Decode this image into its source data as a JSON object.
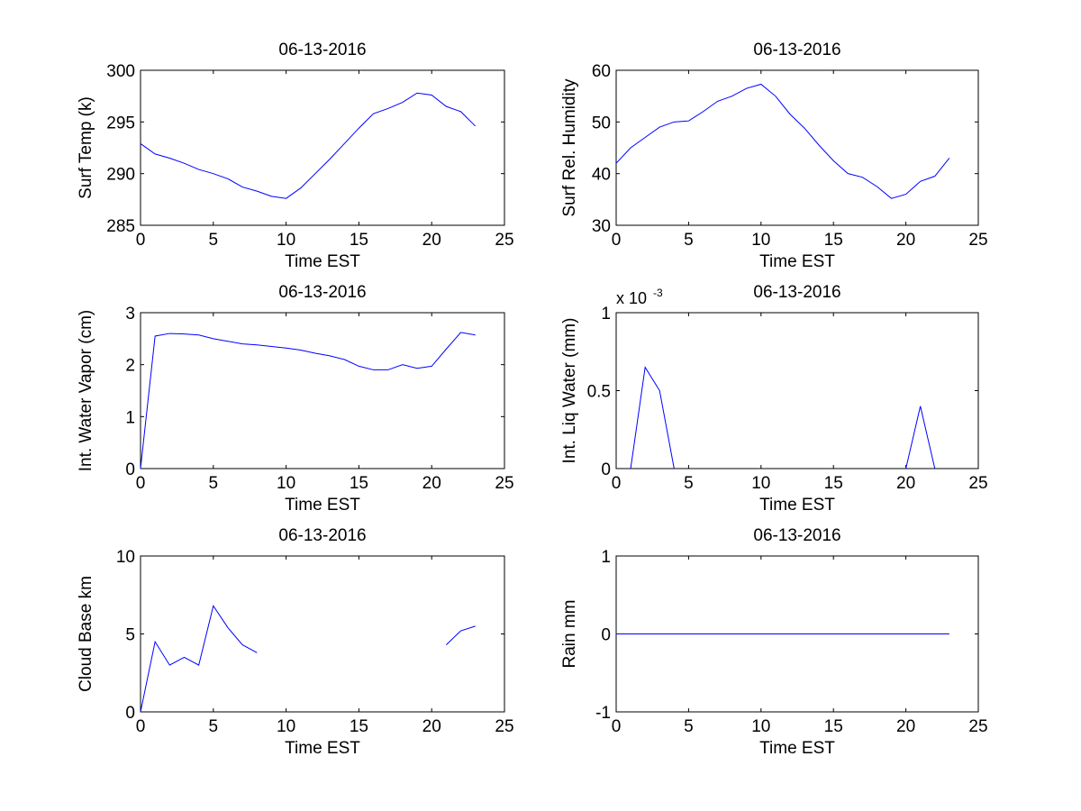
{
  "figure": {
    "background": "#ffffff",
    "line_color": "#0000ff"
  },
  "chart_data": [
    {
      "type": "line",
      "title": "06-13-2016",
      "xlabel": "Time EST",
      "ylabel": "Surf Temp (k)",
      "xlim": [
        0,
        25
      ],
      "ylim": [
        285,
        300
      ],
      "xticks": [
        0,
        5,
        10,
        15,
        20,
        25
      ],
      "yticks": [
        285,
        290,
        295,
        300
      ],
      "xtick_labels": [
        "0",
        "5",
        "10",
        "15",
        "20",
        "25"
      ],
      "ytick_labels": [
        "285",
        "290",
        "295",
        "300"
      ],
      "series": [
        {
          "name": "Surf Temp",
          "x": [
            0,
            1,
            2,
            3,
            4,
            5,
            6,
            7,
            8,
            9,
            10,
            11,
            12,
            13,
            14,
            15,
            16,
            17,
            18,
            19,
            20,
            21,
            22,
            23
          ],
          "values": [
            292.9,
            291.9,
            291.5,
            291.0,
            290.4,
            290.0,
            289.5,
            288.7,
            288.3,
            287.8,
            287.6,
            288.6,
            290.0,
            291.4,
            292.9,
            294.4,
            295.8,
            296.3,
            296.9,
            297.8,
            297.6,
            296.5,
            296.0,
            294.6
          ]
        }
      ]
    },
    {
      "type": "line",
      "title": "06-13-2016",
      "xlabel": "Time EST",
      "ylabel": "Surf Rel. Humidity",
      "xlim": [
        0,
        25
      ],
      "ylim": [
        30,
        60
      ],
      "xticks": [
        0,
        5,
        10,
        15,
        20,
        25
      ],
      "yticks": [
        30,
        40,
        50,
        60
      ],
      "xtick_labels": [
        "0",
        "5",
        "10",
        "15",
        "20",
        "25"
      ],
      "ytick_labels": [
        "30",
        "40",
        "50",
        "60"
      ],
      "series": [
        {
          "name": "Surf Rel. Humidity",
          "x": [
            0,
            1,
            2,
            3,
            4,
            5,
            6,
            7,
            8,
            9,
            10,
            11,
            12,
            13,
            14,
            15,
            16,
            17,
            18,
            19,
            20,
            21,
            22,
            23
          ],
          "values": [
            42.0,
            45.0,
            47.0,
            49.0,
            50.0,
            50.2,
            52.0,
            54.0,
            55.0,
            56.5,
            57.3,
            55.0,
            51.5,
            48.8,
            45.5,
            42.5,
            40.0,
            39.3,
            37.5,
            35.2,
            36.0,
            38.5,
            39.5,
            43.0
          ]
        }
      ]
    },
    {
      "type": "line",
      "title": "06-13-2016",
      "xlabel": "Time EST",
      "ylabel": "Int. Water Vapor (cm)",
      "xlim": [
        0,
        25
      ],
      "ylim": [
        0,
        3
      ],
      "xticks": [
        0,
        5,
        10,
        15,
        20,
        25
      ],
      "yticks": [
        0,
        1,
        2,
        3
      ],
      "xtick_labels": [
        "0",
        "5",
        "10",
        "15",
        "20",
        "25"
      ],
      "ytick_labels": [
        "0",
        "1",
        "2",
        "3"
      ],
      "series": [
        {
          "name": "Int. Water Vapor",
          "x": [
            0,
            1,
            2,
            3,
            4,
            5,
            6,
            7,
            8,
            9,
            10,
            11,
            12,
            13,
            14,
            15,
            16,
            17,
            18,
            19,
            20,
            21,
            22,
            23
          ],
          "values": [
            0.0,
            2.55,
            2.6,
            2.59,
            2.57,
            2.5,
            2.45,
            2.4,
            2.38,
            2.35,
            2.32,
            2.28,
            2.22,
            2.17,
            2.1,
            1.97,
            1.9,
            1.9,
            2.0,
            1.93,
            1.97,
            2.3,
            2.62,
            2.57
          ]
        }
      ]
    },
    {
      "type": "line",
      "title": "06-13-2016",
      "xlabel": "Time EST",
      "ylabel": "Int. Liq Water (mm)",
      "exponent_base": "x 10",
      "exponent_power": "-3",
      "xlim": [
        0,
        25
      ],
      "ylim": [
        0,
        1
      ],
      "xticks": [
        0,
        5,
        10,
        15,
        20,
        25
      ],
      "yticks": [
        0,
        0.5,
        1
      ],
      "xtick_labels": [
        "0",
        "5",
        "10",
        "15",
        "20",
        "25"
      ],
      "ytick_labels": [
        "0",
        "0.5",
        "1"
      ],
      "series": [
        {
          "name": "Int. Liq Water",
          "x": [
            0,
            1,
            2,
            3,
            4,
            5,
            6,
            7,
            8,
            9,
            10,
            11,
            12,
            13,
            14,
            15,
            16,
            17,
            18,
            19,
            20,
            21,
            22,
            23
          ],
          "values": [
            null,
            0,
            0.65,
            0.5,
            0,
            null,
            null,
            null,
            null,
            null,
            null,
            null,
            null,
            null,
            null,
            null,
            null,
            null,
            null,
            null,
            0,
            0.4,
            0,
            null
          ]
        }
      ]
    },
    {
      "type": "line",
      "title": "06-13-2016",
      "xlabel": "Time EST",
      "ylabel": "Cloud Base km",
      "xlim": [
        0,
        25
      ],
      "ylim": [
        0,
        10
      ],
      "xticks": [
        0,
        5,
        10,
        15,
        20,
        25
      ],
      "yticks": [
        0,
        5,
        10
      ],
      "xtick_labels": [
        "0",
        "5",
        "10",
        "15",
        "20",
        "25"
      ],
      "ytick_labels": [
        "0",
        "5",
        "10"
      ],
      "series": [
        {
          "name": "Cloud Base",
          "x": [
            0,
            1,
            2,
            3,
            4,
            5,
            6,
            7,
            8,
            9,
            10,
            11,
            12,
            13,
            14,
            15,
            16,
            17,
            18,
            19,
            20,
            21,
            22,
            23
          ],
          "values": [
            0,
            4.5,
            3.0,
            3.5,
            3.0,
            6.8,
            5.4,
            4.3,
            3.8,
            null,
            null,
            null,
            null,
            null,
            null,
            null,
            null,
            null,
            null,
            null,
            null,
            4.3,
            5.2,
            5.5
          ]
        }
      ]
    },
    {
      "type": "line",
      "title": "06-13-2016",
      "xlabel": "Time EST",
      "ylabel": "Rain mm",
      "xlim": [
        0,
        25
      ],
      "ylim": [
        -1,
        1
      ],
      "xticks": [
        0,
        5,
        10,
        15,
        20,
        25
      ],
      "yticks": [
        -1,
        0,
        1
      ],
      "xtick_labels": [
        "0",
        "5",
        "10",
        "15",
        "20",
        "25"
      ],
      "ytick_labels": [
        "-1",
        "0",
        "1"
      ],
      "series": [
        {
          "name": "Rain",
          "x": [
            0,
            1,
            2,
            3,
            4,
            5,
            6,
            7,
            8,
            9,
            10,
            11,
            12,
            13,
            14,
            15,
            16,
            17,
            18,
            19,
            20,
            21,
            22,
            23
          ],
          "values": [
            0,
            0,
            0,
            0,
            0,
            0,
            0,
            0,
            0,
            0,
            0,
            0,
            0,
            0,
            0,
            0,
            0,
            0,
            0,
            0,
            0,
            0,
            0,
            0
          ]
        }
      ]
    }
  ]
}
